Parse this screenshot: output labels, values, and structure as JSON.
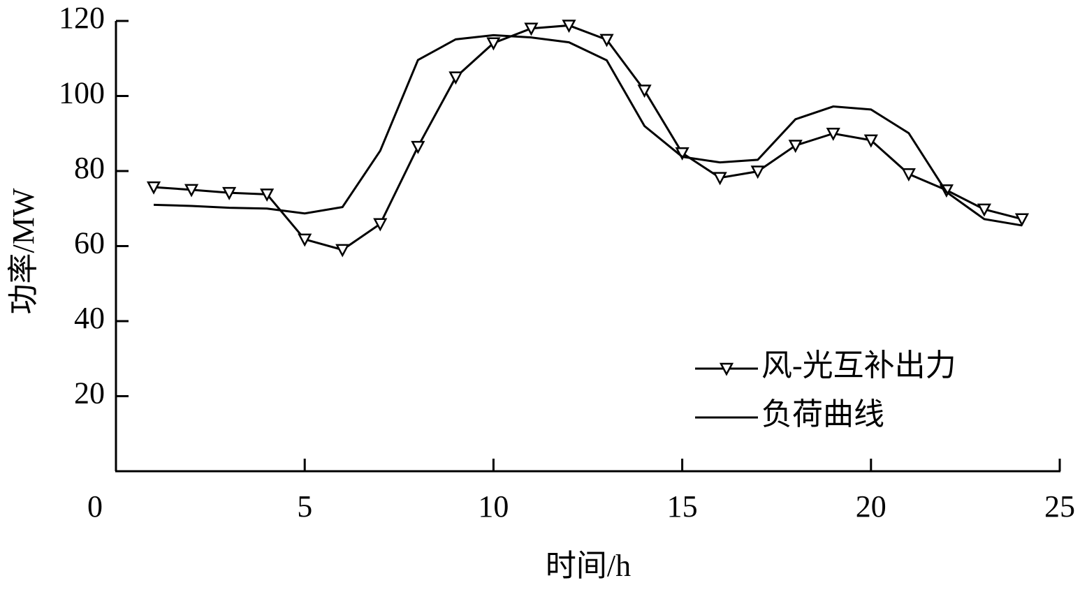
{
  "chart_data": {
    "type": "line",
    "x_label": "时间/h",
    "y_label": "功率/MW",
    "x": [
      1,
      2,
      3,
      4,
      5,
      6,
      7,
      8,
      9,
      10,
      11,
      12,
      13,
      14,
      15,
      16,
      17,
      18,
      19,
      20,
      21,
      22,
      23,
      24
    ],
    "series": [
      {
        "name": "风-光互补出力",
        "color": "#000000",
        "marker": "triangle-down",
        "values": [
          75.7,
          75,
          74.2,
          73.8,
          61.8,
          59,
          65.9,
          86.5,
          105,
          114.1,
          118,
          118.8,
          115,
          101.5,
          84.8,
          78.2,
          79.9,
          86.8,
          90,
          88.2,
          79.2,
          74.9,
          69.8,
          67.2
        ]
      },
      {
        "name": "负荷曲线",
        "color": "#000000",
        "marker": "none",
        "values": [
          71,
          70.7,
          70.2,
          70,
          68.7,
          70.4,
          85.4,
          109.6,
          115.1,
          116.2,
          115.6,
          114.3,
          109.5,
          92,
          83.8,
          82.3,
          83,
          93.8,
          97.2,
          96.4,
          90.1,
          74.4,
          67.2,
          65.5
        ]
      }
    ],
    "xlim": [
      0,
      25
    ],
    "xticks": [
      0,
      5,
      10,
      15,
      20,
      25
    ],
    "ylim": [
      0,
      120
    ],
    "yticks": [
      20,
      40,
      60,
      80,
      100,
      120
    ],
    "legend": "lower-right"
  }
}
